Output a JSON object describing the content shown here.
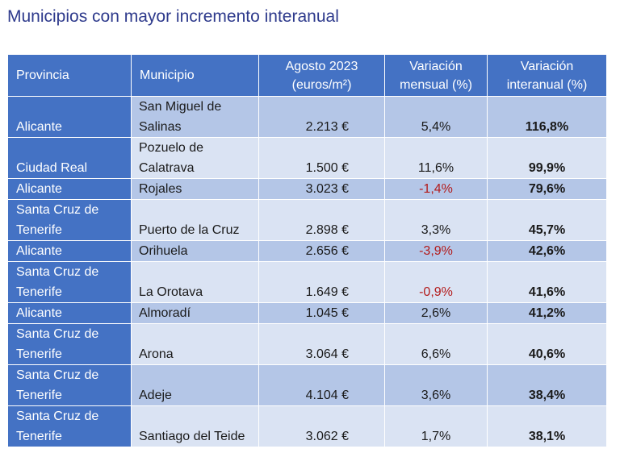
{
  "title": "Municipios con mayor incremento interanual",
  "headers": {
    "provincia": "Provincia",
    "municipio": "Municipio",
    "agosto_l1": "Agosto 2023",
    "agosto_l2": "(euros/m²)",
    "mensual_l1": "Variación",
    "mensual_l2": "mensual (%)",
    "interanual_l1": "Variación",
    "interanual_l2": "interanual (%)"
  },
  "rows": [
    {
      "provincia": "Alicante",
      "municipio": "San Miguel de Salinas",
      "precio": "2.213 €",
      "mensual": "5,4%",
      "interanual": "116,8%"
    },
    {
      "provincia": "Ciudad Real",
      "municipio": "Pozuelo de Calatrava",
      "precio": "1.500 €",
      "mensual": "11,6%",
      "interanual": "99,9%"
    },
    {
      "provincia": "Alicante",
      "municipio": "Rojales",
      "precio": "3.023 €",
      "mensual": "-1,4%",
      "interanual": "79,6%"
    },
    {
      "provincia": "Santa Cruz de Tenerife",
      "municipio": "Puerto de la Cruz",
      "precio": "2.898 €",
      "mensual": "3,3%",
      "interanual": "45,7%"
    },
    {
      "provincia": "Alicante",
      "municipio": "Orihuela",
      "precio": "2.656 €",
      "mensual": "-3,9%",
      "interanual": "42,6%"
    },
    {
      "provincia": "Santa Cruz de Tenerife",
      "municipio": "La Orotava",
      "precio": "1.649 €",
      "mensual": "-0,9%",
      "interanual": "41,6%"
    },
    {
      "provincia": "Alicante",
      "municipio": "Almoradí",
      "precio": "1.045 €",
      "mensual": "2,6%",
      "interanual": "41,2%"
    },
    {
      "provincia": "Santa Cruz de Tenerife",
      "municipio": "Arona",
      "precio": "3.064 €",
      "mensual": "6,6%",
      "interanual": "40,6%"
    },
    {
      "provincia": "Santa Cruz de Tenerife",
      "municipio": "Adeje",
      "precio": "4.104 €",
      "mensual": "3,6%",
      "interanual": "38,4%"
    },
    {
      "provincia": "Santa Cruz de Tenerife",
      "municipio": "Santiago del Teide",
      "precio": "3.062 €",
      "mensual": "1,7%",
      "interanual": "38,1%"
    }
  ]
}
